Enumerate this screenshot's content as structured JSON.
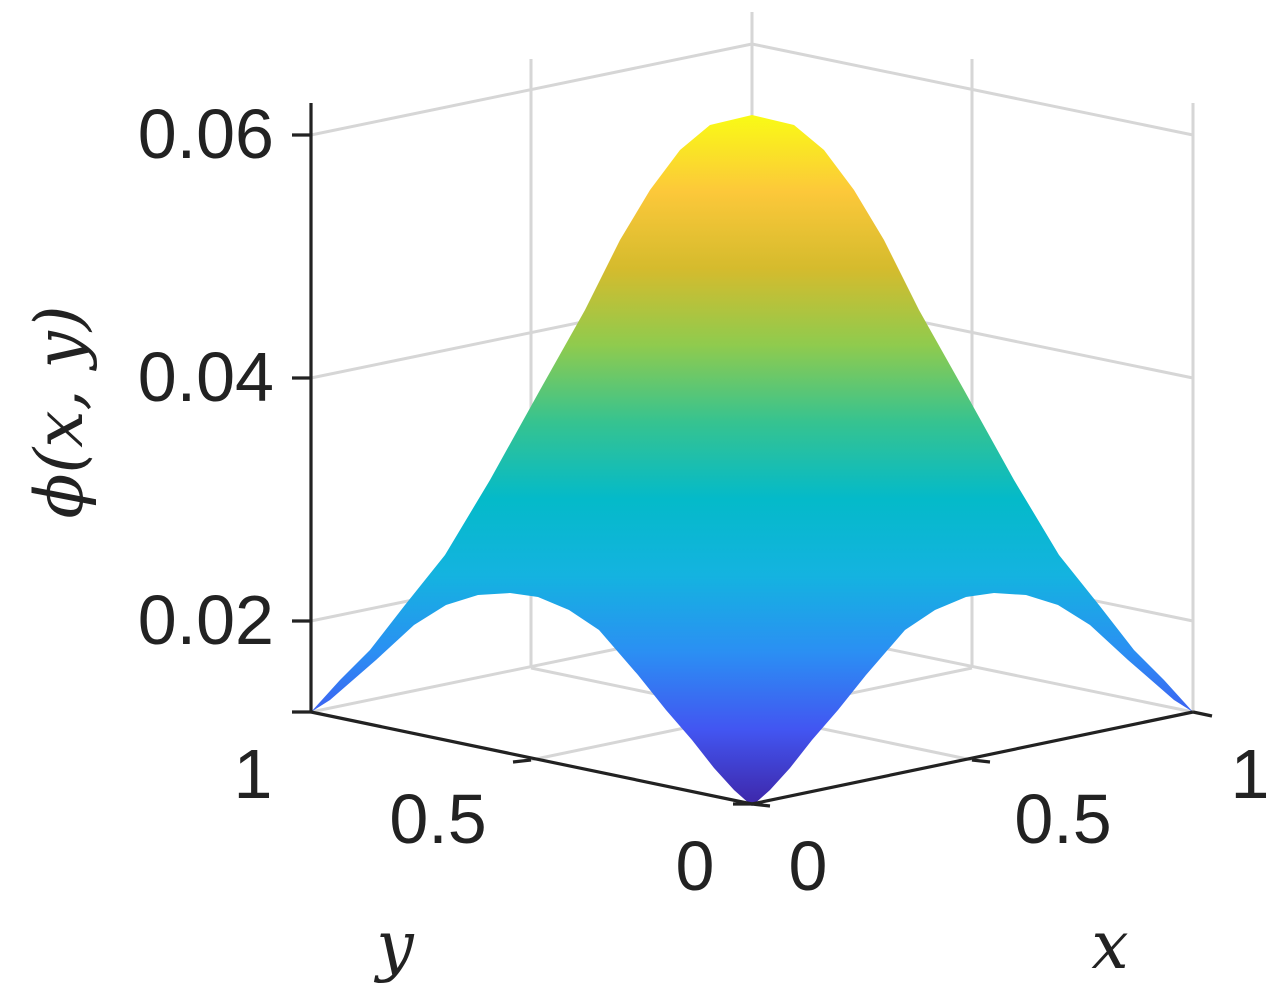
{
  "chart_data": {
    "type": "surface",
    "title": "",
    "xlabel": "x",
    "ylabel": "y",
    "zlabel": "ϕ(x, y)",
    "xlim": [
      0,
      1
    ],
    "ylim": [
      0,
      1
    ],
    "zlim": [
      0.0125,
      0.0625
    ],
    "xticks": [
      "0",
      "0.5",
      "1"
    ],
    "yticks": [
      "0",
      "0.5",
      "1"
    ],
    "zticks": [
      "0.02",
      "0.04",
      "0.06"
    ],
    "grid": true,
    "colormap": "parula",
    "colormap_stops": [
      "#3e26a8",
      "#4256f2",
      "#2b8ff3",
      "#14b3e0",
      "#04bac9",
      "#36c390",
      "#8fcb4e",
      "#d5bb2d",
      "#fcc83a",
      "#f9fb15"
    ],
    "surface_summary": {
      "corner_values": 0.0135,
      "edge_midpoint_values": 0.022,
      "center_peak": 0.0613
    }
  }
}
